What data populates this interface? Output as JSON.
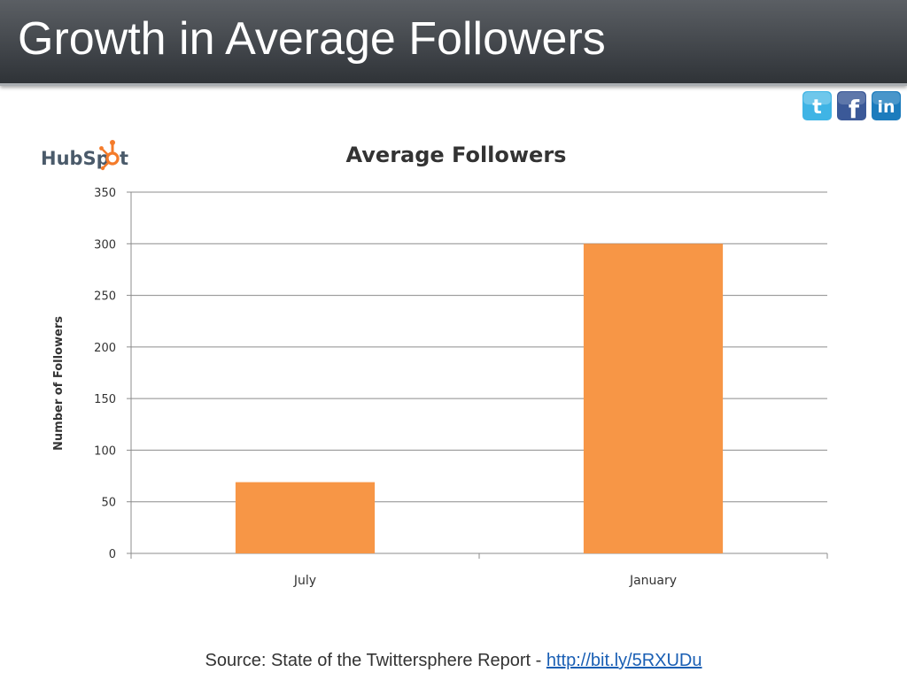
{
  "slide": {
    "title": "Growth in Average Followers"
  },
  "social_icons": [
    {
      "name": "twitter-icon",
      "glyph": "t",
      "color": "#3fb4e5"
    },
    {
      "name": "facebook-icon",
      "glyph": "f",
      "color": "#3b5998"
    },
    {
      "name": "linkedin-icon",
      "glyph": "in",
      "color": "#1c7cbd"
    }
  ],
  "logo": {
    "text": "HubSpot",
    "color_main": "#4a5a6a",
    "color_accent": "#f47b2a"
  },
  "chart_data": {
    "type": "bar",
    "title": "Average Followers",
    "xlabel": "",
    "ylabel": "Number of Followers",
    "categories": [
      "July",
      "January"
    ],
    "values": [
      69,
      300
    ],
    "ylim": [
      0,
      350
    ],
    "yticks": [
      0,
      50,
      100,
      150,
      200,
      250,
      300,
      350
    ],
    "grid": true,
    "legend": "none",
    "bar_color": "#f79646"
  },
  "source": {
    "text": "Source: State of the Twittersphere Report - ",
    "link_text": "http://bit.ly/5RXUDu"
  }
}
